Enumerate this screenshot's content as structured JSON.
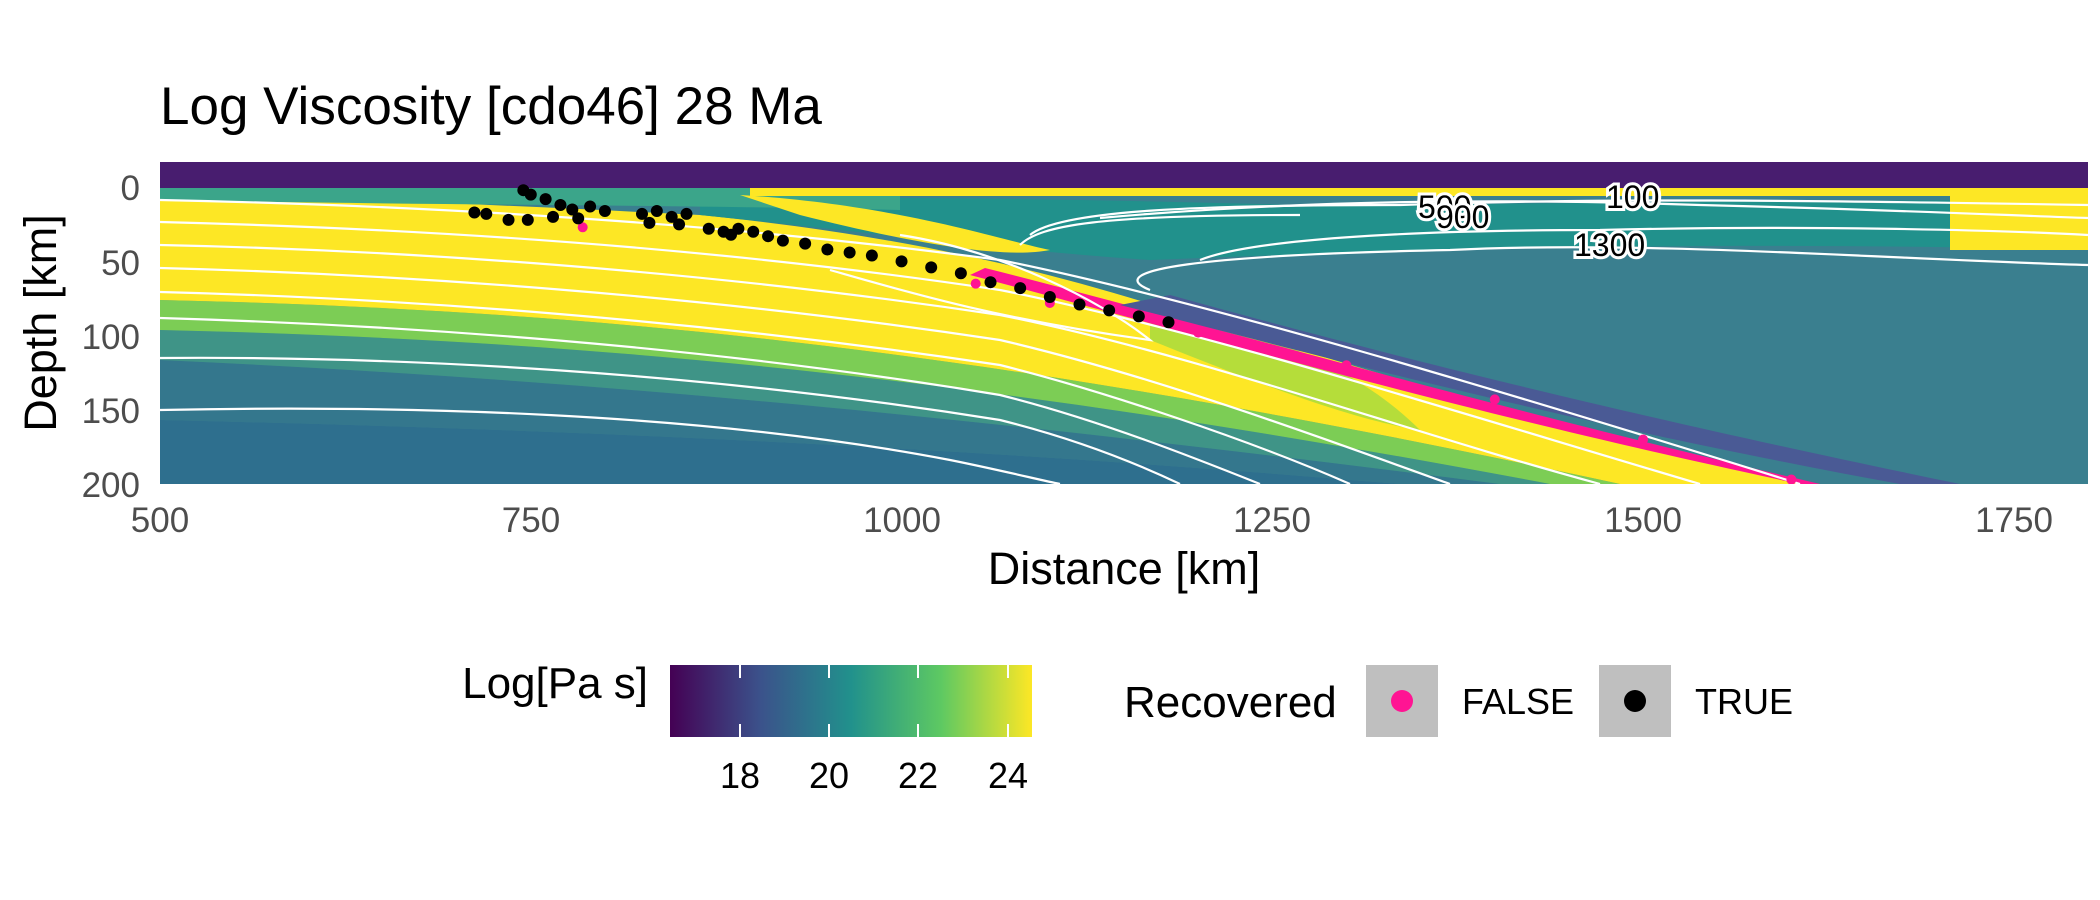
{
  "chart_data": {
    "type": "heatmap",
    "title": "Log Viscosity [cdo46] 28 Ma",
    "xlabel": "Distance [km]",
    "ylabel": "Depth [km]",
    "xlim": [
      500,
      1800
    ],
    "ylim": [
      200,
      -17
    ],
    "x_ticks": [
      "500",
      "750",
      "1000",
      "1250",
      "1500",
      "1750"
    ],
    "y_ticks": [
      "0",
      "50",
      "100",
      "150",
      "200"
    ],
    "colorbar": {
      "title": "Log[Pa s]",
      "range": [
        16.5,
        24.5
      ],
      "ticks": [
        "18",
        "20",
        "22",
        "24"
      ],
      "palette": [
        "#440154",
        "#3b528b",
        "#21918c",
        "#5ec962",
        "#fde725"
      ]
    },
    "contour_labels": [
      "500",
      "900",
      "100",
      "1300"
    ],
    "legend": {
      "title": "Recovered",
      "entries": [
        {
          "label": "FALSE",
          "color": "#ff1493"
        },
        {
          "label": "TRUE",
          "color": "#000000"
        }
      ]
    },
    "recovered_true_points": [
      [
        745,
        2
      ],
      [
        750,
        5
      ],
      [
        760,
        8
      ],
      [
        770,
        12
      ],
      [
        778,
        15
      ],
      [
        790,
        13
      ],
      [
        800,
        16
      ],
      [
        712,
        17
      ],
      [
        720,
        18
      ],
      [
        735,
        22
      ],
      [
        748,
        22
      ],
      [
        765,
        20
      ],
      [
        782,
        21
      ],
      [
        825,
        18
      ],
      [
        835,
        16
      ],
      [
        845,
        20
      ],
      [
        855,
        18
      ],
      [
        830,
        24
      ],
      [
        850,
        25
      ],
      [
        870,
        28
      ],
      [
        880,
        30
      ],
      [
        885,
        32
      ],
      [
        890,
        28
      ],
      [
        900,
        30
      ],
      [
        910,
        33
      ],
      [
        920,
        36
      ],
      [
        935,
        38
      ],
      [
        950,
        42
      ],
      [
        965,
        44
      ],
      [
        980,
        46
      ],
      [
        1000,
        50
      ],
      [
        1020,
        54
      ],
      [
        1040,
        58
      ],
      [
        1060,
        64
      ],
      [
        1080,
        68
      ],
      [
        1100,
        74
      ],
      [
        1120,
        79
      ],
      [
        1140,
        83
      ],
      [
        1160,
        87
      ],
      [
        1180,
        91
      ]
    ],
    "recovered_false_points": [
      [
        785,
        27
      ],
      [
        1050,
        65
      ],
      [
        1100,
        78
      ],
      [
        1200,
        98
      ],
      [
        1300,
        120
      ],
      [
        1400,
        143
      ],
      [
        1500,
        170
      ],
      [
        1600,
        197
      ]
    ]
  }
}
